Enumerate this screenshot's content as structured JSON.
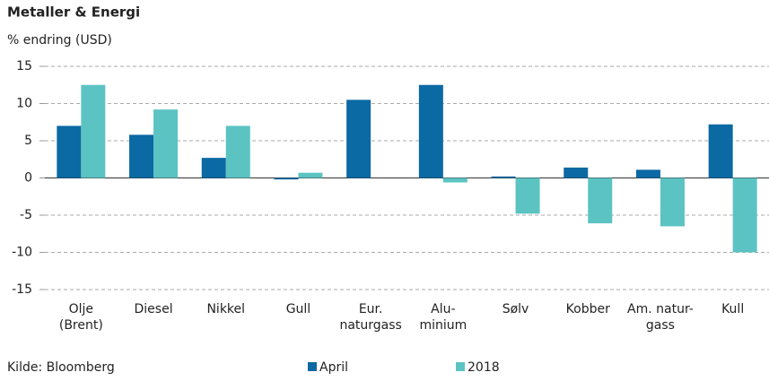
{
  "chart_data": {
    "type": "bar",
    "title": "Metaller & Energi",
    "y_label": "% endring (USD)",
    "source": "Kilde: Bloomberg",
    "categories": [
      [
        "Olje",
        "(Brent)"
      ],
      [
        "Diesel"
      ],
      [
        "Nikkel"
      ],
      [
        "Gull"
      ],
      [
        "Eur.",
        "naturgass"
      ],
      [
        "Alu-",
        "minium"
      ],
      [
        "Sølv"
      ],
      [
        "Kobber"
      ],
      [
        "Am. natur-",
        "gass"
      ],
      [
        "Kull"
      ]
    ],
    "series": [
      {
        "name": "April",
        "color": "#0b69a3",
        "values": [
          7,
          5.8,
          2.7,
          -0.2,
          10.5,
          12.5,
          0.2,
          1.4,
          1.1,
          7.2
        ]
      },
      {
        "name": "2018",
        "color": "#5cc3c3",
        "values": [
          12.5,
          9.2,
          7,
          0.7,
          0,
          -0.6,
          -4.8,
          -6.1,
          -6.5,
          -10
        ]
      }
    ],
    "ylim": [
      -15,
      15
    ],
    "yticks": [
      -15,
      -10,
      -5,
      0,
      5,
      10,
      15
    ],
    "grid": true,
    "legend": "bottom"
  }
}
